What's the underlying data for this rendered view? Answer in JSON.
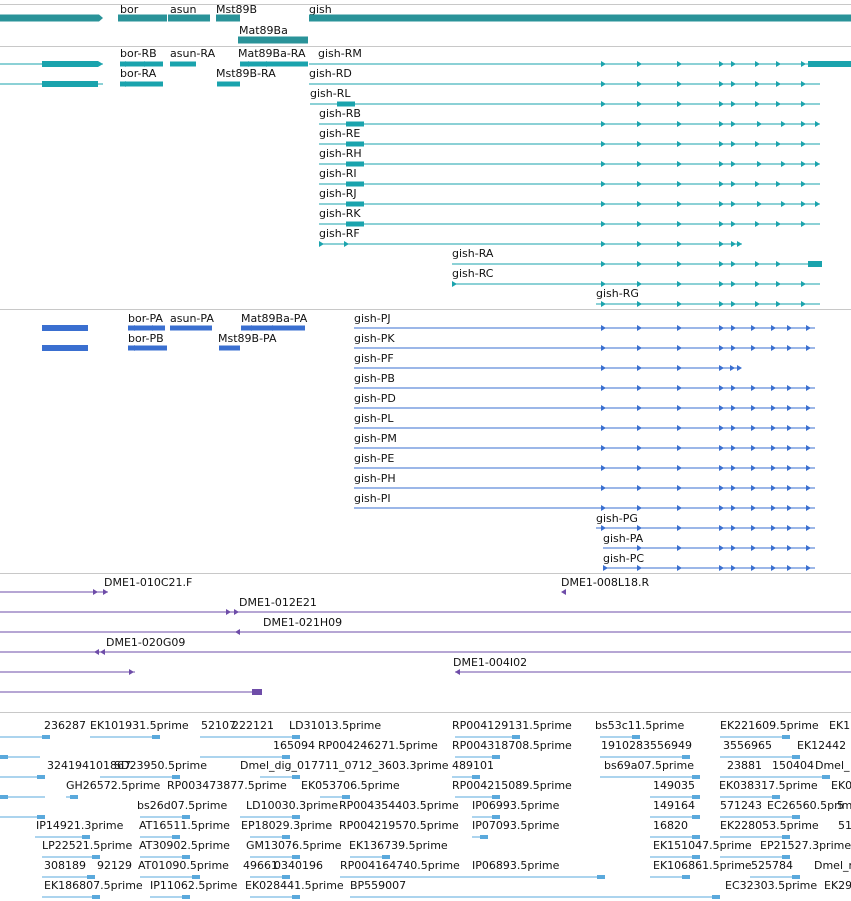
{
  "colors": {
    "gene": "#2a9399",
    "transcript": "#1aa3ad",
    "protein": "#3a6fd0",
    "clone": "#6e4ca8",
    "est": "#5aa9dc",
    "divider": "#c8c8c8"
  },
  "tracks": {
    "genes": [
      "bor",
      "asun",
      "Mst89B",
      "gish",
      "Mat89Ba"
    ],
    "transcripts": [
      "bor-RB",
      "asun-RA",
      "Mat89Ba-RA",
      "gish-RM",
      "bor-RA",
      "Mst89B-RA",
      "gish-RD",
      "gish-RL",
      "gish-RB",
      "gish-RE",
      "gish-RH",
      "gish-RI",
      "gish-RJ",
      "gish-RK",
      "gish-RF",
      "gish-RA",
      "gish-RC",
      "gish-RG"
    ],
    "proteins": [
      "bor-PA",
      "asun-PA",
      "Mat89Ba-PA",
      "bor-PB",
      "Mst89B-PA",
      "gish-PJ",
      "gish-PK",
      "gish-PF",
      "gish-PB",
      "gish-PD",
      "gish-PL",
      "gish-PM",
      "gish-PE",
      "gish-PH",
      "gish-PI",
      "gish-PG",
      "gish-PA",
      "gish-PC"
    ],
    "clones": [
      "DME1-010C21.F",
      "DME1-008L18.R",
      "DME1-012E21",
      "DME1-021H09",
      "DME1-020G09",
      "DME1-004I02"
    ],
    "ests": [
      "236287",
      "EK101931.5prime",
      "52107",
      "222121",
      "LD31013.5prime",
      "RP004129131.5prime",
      "bs53c11.5prime",
      "EK221609.5prime",
      "EK1",
      "165094",
      "RP004246271.5prime",
      "RP004318708.5prime",
      "1910283556949",
      "3556965",
      "EK12442",
      "324194101867",
      "SD23950.5prime",
      "Dmel_dig_017711_0712_3603.3prime",
      "489101",
      "bs69a07.5prime",
      "23881",
      "150404",
      "Dmel_",
      "GH26572.5prime",
      "RP003473877.5prime",
      "EK053706.5prime",
      "RP004215089.5prime",
      "149035",
      "EK038317.5prime",
      "EK0",
      "bs26d07.5prime",
      "LD10030.3prime",
      "RP004354403.5prime",
      "IP06993.5prime",
      "149164",
      "571243",
      "EC26560.5prime",
      "5",
      "IP14921.3prime",
      "AT16511.5prime",
      "EP18029.3prime",
      "RP004219570.5prime",
      "IP07093.5prime",
      "16820",
      "EK228053.5prime",
      "51",
      "LP22521.5prime",
      "AT30902.5prime",
      "GM13076.5prime",
      "EK136739.5prime",
      "EK151047.5prime",
      "EP21527.3prime",
      "308189",
      "92129",
      "AT01090.5prime",
      "49661",
      "0340196",
      "RP004164740.5prime",
      "IP06893.5prime",
      "EK106861.5prime",
      "525784",
      "Dmel_n",
      "EK186807.5prime",
      "IP11062.5prime",
      "EK028441.5prime",
      "BP559007",
      "EC32303.5prime",
      "EK29"
    ]
  }
}
